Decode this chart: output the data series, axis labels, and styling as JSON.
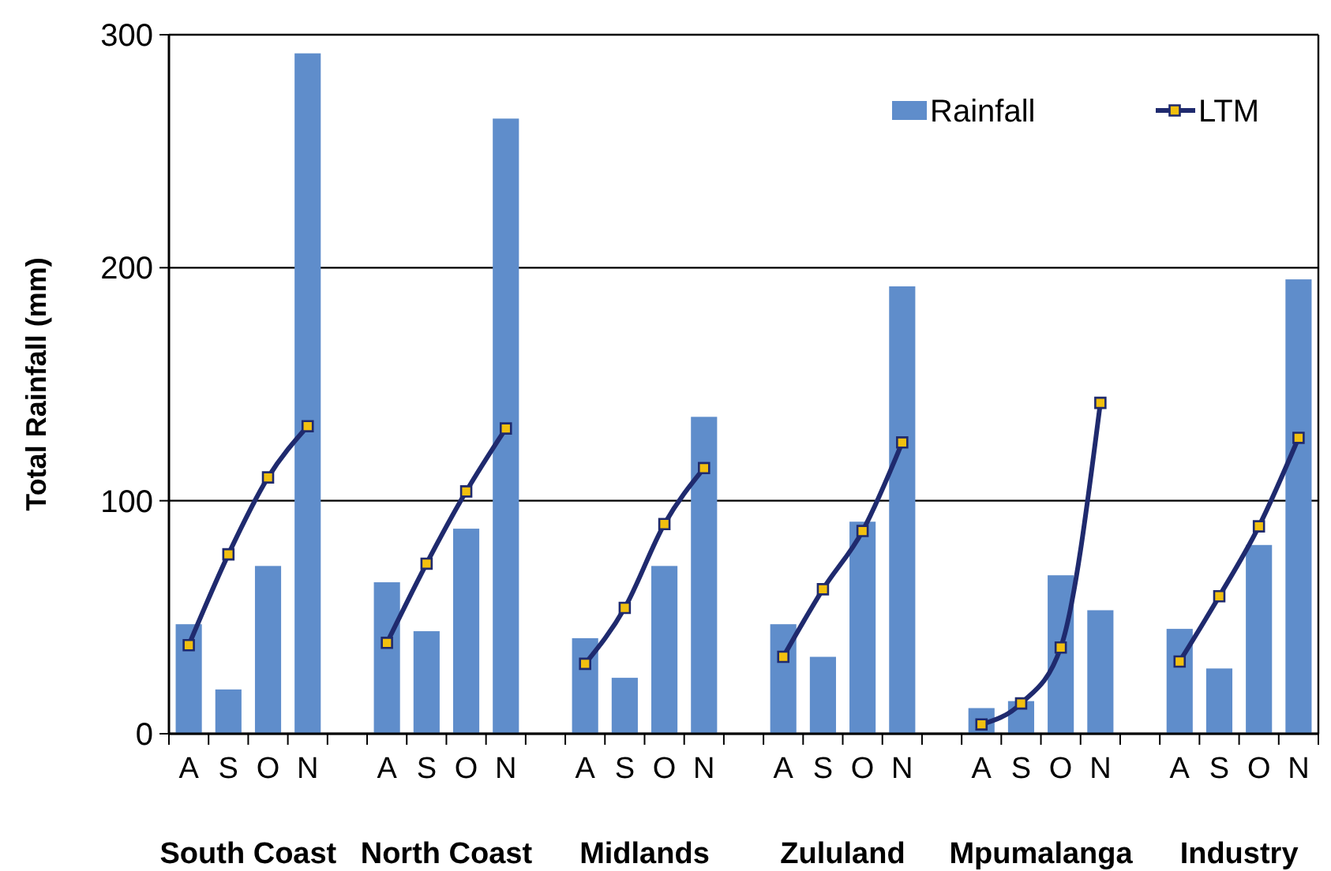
{
  "chart_data": {
    "type": "bar",
    "ylabel": "Total Rainfall (mm)",
    "categories": [
      "A",
      "S",
      "O",
      "N",
      null,
      "A",
      "S",
      "O",
      "N",
      null,
      "A",
      "S",
      "O",
      "N",
      null,
      "A",
      "S",
      "O",
      "N",
      null,
      "A",
      "S",
      "O",
      "N",
      null,
      "A",
      "S",
      "O",
      "N"
    ],
    "series": [
      {
        "name": "Rainfall",
        "color": "#5f8dcb",
        "values": [
          47,
          19,
          72,
          292,
          null,
          65,
          44,
          88,
          264,
          null,
          41,
          24,
          72,
          136,
          null,
          47,
          33,
          91,
          192,
          null,
          11,
          14,
          68,
          53,
          null,
          45,
          28,
          81,
          195
        ]
      },
      {
        "name": "LTM",
        "type": "line",
        "color": "#1f2a6e",
        "values": [
          38,
          77,
          110,
          132,
          null,
          39,
          73,
          104,
          131,
          null,
          30,
          54,
          90,
          114,
          null,
          33,
          62,
          87,
          125,
          null,
          4,
          13,
          37,
          142,
          null,
          31,
          59,
          89,
          127
        ]
      }
    ],
    "ylim": [
      0,
      300
    ],
    "yticks": [
      0,
      100,
      200,
      300
    ],
    "grid": "y",
    "legend": "top right",
    "marker": "square",
    "line_style": "solid",
    "annotations": [
      "South Coast",
      "North Coast",
      "Midlands",
      "Zululand",
      "Mpumalanga",
      "Industry"
    ]
  }
}
